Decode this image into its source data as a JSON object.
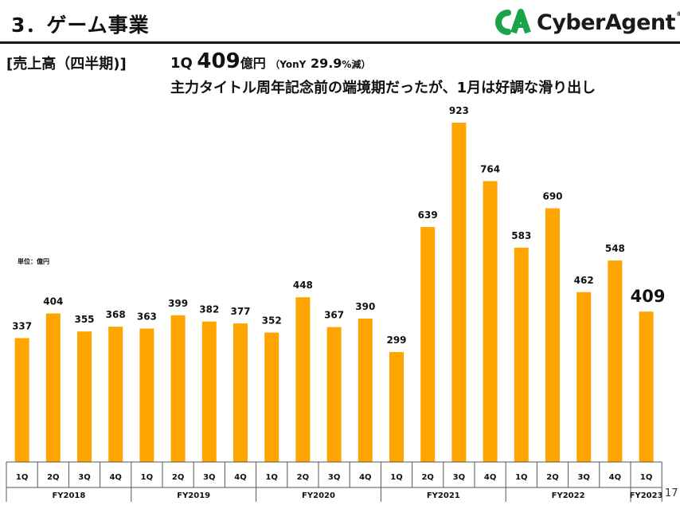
{
  "header": {
    "title": "3．ゲーム事業",
    "logo_text": "CyberAgent",
    "logo_reg": "®"
  },
  "section_label": "[売上高（四半期)]",
  "headline": {
    "quarter": "1Q",
    "value": "409",
    "unit": "億円",
    "yoy_prefix": "（YonY",
    "yoy_value": "29.9",
    "yoy_suffix": "%減）"
  },
  "subline": "主力タイトル周年記念前の端境期だったが、1月は好調な滑り出し",
  "unit_label": "単位：億円",
  "page_number": "17",
  "colors": {
    "bar": "#FFA500",
    "axis": "#555555"
  },
  "chart_data": {
    "type": "bar",
    "categories": [
      "1Q",
      "2Q",
      "3Q",
      "4Q",
      "1Q",
      "2Q",
      "3Q",
      "4Q",
      "1Q",
      "2Q",
      "3Q",
      "4Q",
      "1Q",
      "2Q",
      "3Q",
      "4Q",
      "1Q",
      "2Q",
      "3Q",
      "4Q",
      "1Q"
    ],
    "values": [
      337,
      404,
      355,
      368,
      363,
      399,
      382,
      377,
      352,
      448,
      367,
      390,
      299,
      639,
      923,
      764,
      583,
      690,
      462,
      548,
      409
    ],
    "value_labels": [
      "337",
      "404",
      "355",
      "368",
      "363",
      "399",
      "382",
      "377",
      "352",
      "448",
      "367",
      "390",
      "299",
      "639",
      "923",
      "764",
      "583",
      "690",
      "462",
      "548",
      "409"
    ],
    "groups": [
      {
        "label": "FY2018",
        "count": 4
      },
      {
        "label": "FY2019",
        "count": 4
      },
      {
        "label": "FY2020",
        "count": 4
      },
      {
        "label": "FY2021",
        "count": 4
      },
      {
        "label": "FY2022",
        "count": 4
      },
      {
        "label": "FY2023",
        "count": 1
      }
    ],
    "highlight_last": true,
    "ylim": [
      0,
      923
    ],
    "grid": false
  }
}
